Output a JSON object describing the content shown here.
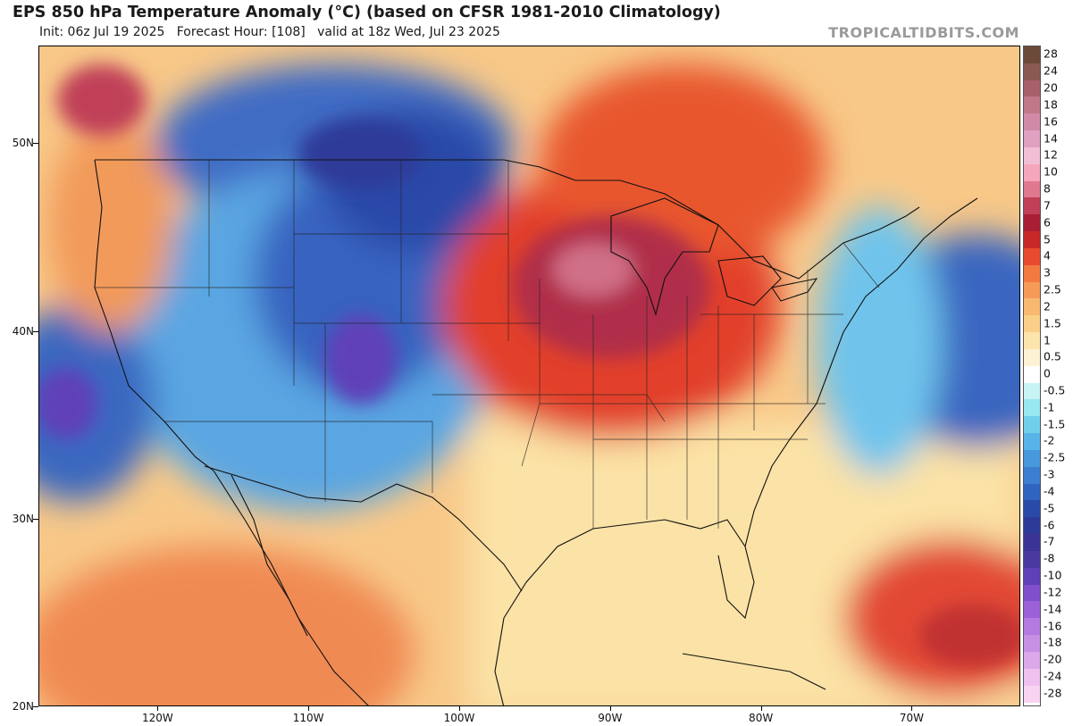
{
  "header": {
    "title": "EPS 850 hPa Temperature Anomaly (°C) (based on CFSR 1981-2010 Climatology)",
    "subtitle": "Init: 06z Jul 19 2025   Forecast Hour: [108]   valid at 18z Wed, Jul 23 2025",
    "brand": "TROPICALTIDBITS.COM"
  },
  "axes": {
    "latitude_labels": [
      "50N",
      "40N",
      "30N",
      "20N"
    ],
    "latitude_values": [
      50,
      40,
      30,
      20
    ],
    "longitude_labels": [
      "120W",
      "110W",
      "100W",
      "90W",
      "80W",
      "70W"
    ],
    "longitude_values": [
      -120,
      -110,
      -100,
      -90,
      -80,
      -70
    ],
    "lat_range": [
      20,
      55.2
    ],
    "lon_range": [
      -127.9,
      -62.8
    ]
  },
  "colorbar": {
    "labels": [
      "28",
      "24",
      "20",
      "18",
      "16",
      "14",
      "12",
      "10",
      "8",
      "7",
      "6",
      "5",
      "4",
      "3",
      "2.5",
      "2",
      "1.5",
      "1",
      "0.5",
      "0",
      "-0.5",
      "-1",
      "-1.5",
      "-2",
      "-2.5",
      "-3",
      "-4",
      "-5",
      "-6",
      "-7",
      "-8",
      "-10",
      "-12",
      "-14",
      "-16",
      "-18",
      "-20",
      "-24",
      "-28"
    ],
    "colors": [
      "#6b4a3a",
      "#8a5a50",
      "#a8606a",
      "#c07888",
      "#d08aa8",
      "#e0a0c0",
      "#f2bed6",
      "#f6a6bc",
      "#e07890",
      "#c04058",
      "#a81e34",
      "#c82828",
      "#e84a30",
      "#f27a40",
      "#f69a58",
      "#f8b870",
      "#fad088",
      "#fce4ac",
      "#fef2d4",
      "#ffffff",
      "#c8f4f4",
      "#98e8f0",
      "#70d0ec",
      "#58b4e8",
      "#4898dc",
      "#3c7ed0",
      "#3064c0",
      "#2a4aa8",
      "#2e3a98",
      "#3c3494",
      "#4a3aa0",
      "#6040b8",
      "#8050cc",
      "#9c60d8",
      "#b47ae0",
      "#c890e4",
      "#dca8ea",
      "#f0c0ee",
      "#f8d4f2"
    ]
  },
  "map_regions": {
    "continent_outline": "coast-and-borders"
  }
}
